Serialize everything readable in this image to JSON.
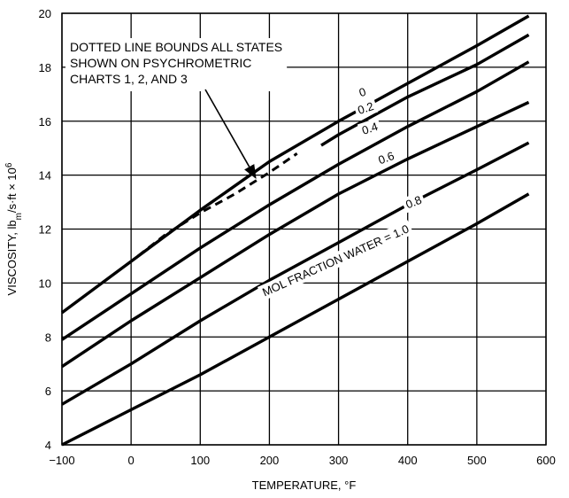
{
  "chart_data": {
    "type": "line",
    "xlabel": "TEMPERATURE, °F",
    "ylabel_parts": [
      "VISCOSITY, lb",
      "m",
      "/s·ft × 10",
      "6"
    ],
    "xlim": [
      -100,
      600
    ],
    "ylim": [
      4,
      20
    ],
    "x_ticks": [
      -100,
      0,
      100,
      200,
      300,
      400,
      500,
      600
    ],
    "x_tick_labels": [
      "−100",
      "0",
      "100",
      "200",
      "300",
      "400",
      "500",
      "600"
    ],
    "y_ticks": [
      4,
      6,
      8,
      10,
      12,
      14,
      16,
      18,
      20
    ],
    "y_tick_labels": [
      "4",
      "6",
      "8",
      "10",
      "12",
      "14",
      "16",
      "18",
      "20"
    ],
    "grid": true,
    "series": [
      {
        "name": "0",
        "x": [
          -100,
          0,
          100,
          200,
          300,
          400,
          500,
          575
        ],
        "y": [
          8.9,
          10.8,
          12.7,
          14.5,
          16.0,
          17.4,
          18.8,
          19.9
        ]
      },
      {
        "name": "0.2",
        "x": [
          275,
          300,
          400,
          500,
          575
        ],
        "y": [
          15.1,
          15.5,
          16.9,
          18.1,
          19.2
        ]
      },
      {
        "name": "0.4",
        "x": [
          -100,
          0,
          100,
          200,
          300,
          400,
          500,
          575
        ],
        "y": [
          7.9,
          9.6,
          11.3,
          12.9,
          14.4,
          15.8,
          17.1,
          18.2
        ]
      },
      {
        "name": "0.6",
        "x": [
          -100,
          0,
          100,
          200,
          300,
          400,
          500,
          575
        ],
        "y": [
          6.9,
          8.6,
          10.2,
          11.8,
          13.3,
          14.6,
          15.8,
          16.7
        ]
      },
      {
        "name": "0.8",
        "x": [
          -100,
          0,
          100,
          200,
          300,
          400,
          500,
          575
        ],
        "y": [
          5.5,
          7.0,
          8.6,
          10.1,
          11.5,
          12.9,
          14.2,
          15.2
        ]
      },
      {
        "name": "1.0",
        "x": [
          -100,
          0,
          100,
          200,
          300,
          400,
          500,
          575
        ],
        "y": [
          4.0,
          5.3,
          6.6,
          8.0,
          9.4,
          10.8,
          12.2,
          13.3
        ]
      }
    ],
    "boundary_series": {
      "name": "psychrometric-bound",
      "x": [
        10,
        50,
        100,
        150,
        200,
        240
      ],
      "y": [
        11.0,
        11.8,
        12.6,
        13.3,
        14.1,
        14.8
      ]
    },
    "curve_labels": [
      {
        "text": "0",
        "x": 332,
        "y": 16.9,
        "rotate": -18
      },
      {
        "text": "0.2",
        "x": 330,
        "y": 16.25,
        "rotate": -18
      },
      {
        "text": "0.4",
        "x": 336,
        "y": 15.5,
        "rotate": -18
      },
      {
        "text": "0.6",
        "x": 360,
        "y": 14.4,
        "rotate": -20
      },
      {
        "text": "0.8",
        "x": 400,
        "y": 12.75,
        "rotate": -22
      },
      {
        "text": "MOL FRACTION WATER = 1.0",
        "x": 193,
        "y": 9.5,
        "rotate": -24
      }
    ],
    "annotation": {
      "lines": [
        "DOTTED LINE BOUNDS ALL STATES",
        "SHOWN ON PSYCHROMETRIC",
        "CHARTS 1, 2, AND 3"
      ],
      "arrow_to": {
        "x": 180,
        "y": 13.9
      }
    },
    "legend": "none"
  }
}
